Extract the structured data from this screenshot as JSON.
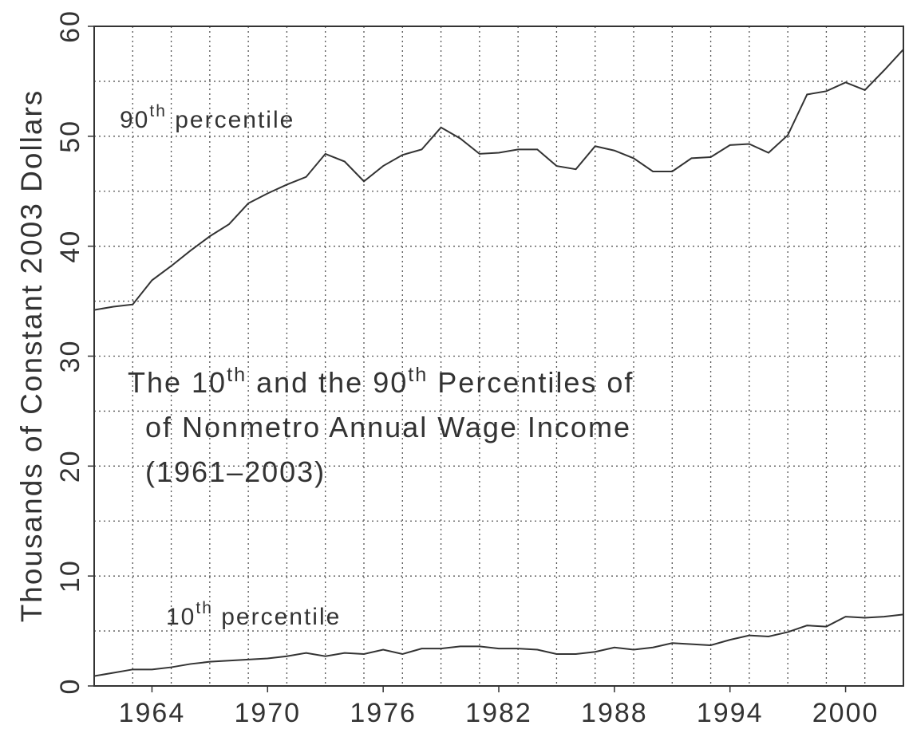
{
  "chart_data": {
    "type": "line",
    "title_lines": [
      [
        "The 10",
        "th",
        " and the 90",
        "th",
        " Percentiles of"
      ],
      [
        "of Nonmetro Annual Wage Income"
      ],
      [
        "(1961–2003)"
      ]
    ],
    "y_label": "Thousands of Constant 2003 Dollars",
    "x": [
      1961,
      1962,
      1963,
      1964,
      1965,
      1966,
      1967,
      1968,
      1969,
      1970,
      1971,
      1972,
      1973,
      1974,
      1975,
      1976,
      1977,
      1978,
      1979,
      1980,
      1981,
      1982,
      1983,
      1984,
      1985,
      1986,
      1987,
      1988,
      1989,
      1990,
      1991,
      1992,
      1993,
      1994,
      1995,
      1996,
      1997,
      1998,
      1999,
      2000,
      2001,
      2002,
      2003
    ],
    "series": [
      {
        "name_parts": [
          "90",
          "th",
          " percentile"
        ],
        "color": "#333333",
        "values": [
          34.2,
          34.5,
          34.7,
          36.9,
          38.2,
          39.6,
          40.9,
          42.0,
          43.9,
          44.8,
          45.6,
          46.3,
          48.4,
          47.7,
          45.9,
          47.3,
          48.3,
          48.8,
          50.8,
          49.8,
          48.4,
          48.5,
          48.8,
          48.8,
          47.3,
          47.0,
          49.1,
          48.7,
          48.0,
          46.8,
          46.8,
          48.0,
          48.1,
          49.2,
          49.3,
          48.5,
          50.1,
          53.8,
          54.1,
          54.9,
          54.2,
          56.0,
          57.9
        ]
      },
      {
        "name_parts": [
          "10",
          "th",
          " percentile"
        ],
        "color": "#333333",
        "values": [
          0.9,
          1.2,
          1.5,
          1.5,
          1.7,
          2.0,
          2.2,
          2.3,
          2.4,
          2.5,
          2.7,
          3.0,
          2.7,
          3.0,
          2.9,
          3.3,
          2.9,
          3.4,
          3.4,
          3.6,
          3.6,
          3.4,
          3.4,
          3.3,
          2.9,
          2.9,
          3.1,
          3.5,
          3.3,
          3.5,
          3.9,
          3.8,
          3.7,
          4.2,
          4.6,
          4.5,
          4.9,
          5.5,
          5.4,
          6.3,
          6.2,
          6.3,
          6.5
        ]
      }
    ],
    "xlim": [
      1961,
      2003
    ],
    "xticks": [
      1964,
      1970,
      1976,
      1982,
      1988,
      1994,
      2000
    ],
    "xgrid": [
      1963,
      1965,
      1967,
      1969,
      1971,
      1973,
      1975,
      1977,
      1979,
      1981,
      1983,
      1985,
      1987,
      1989,
      1991,
      1993,
      1995,
      1997,
      1999,
      2001
    ],
    "ylim": [
      0,
      60
    ],
    "yticks": [
      0,
      10,
      20,
      30,
      40,
      50,
      60
    ],
    "ygrid": [
      5,
      10,
      15,
      20,
      25,
      30,
      35,
      40,
      45,
      50,
      55
    ],
    "grid": true
  }
}
